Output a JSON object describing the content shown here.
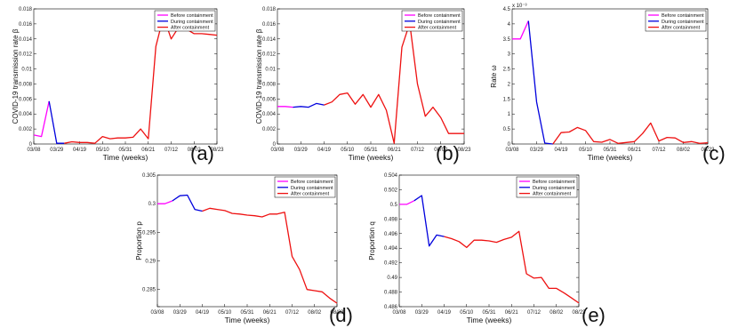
{
  "colors": {
    "before": "#ff00ff",
    "during": "#0000dd",
    "after": "#ee1111"
  },
  "chart_data": [
    {
      "type": "line",
      "panel_label": "(a)",
      "ylabel": "COVID-19 transmission rate β_H",
      "xlabel": "Time (weeks)",
      "x_tick_labels": [
        "03/08",
        "03/29",
        "04/19",
        "05/10",
        "05/31",
        "06/21",
        "07/12",
        "08/02",
        "08/23"
      ],
      "ylim": [
        0,
        0.018
      ],
      "yticks": [
        "0",
        "0.002",
        "0.004",
        "0.006",
        "0.008",
        "0.01",
        "0.012",
        "0.014",
        "0.016",
        "0.018"
      ],
      "y_multiplier": "",
      "legend": [
        "Before containment",
        "During containment",
        "After containment"
      ],
      "legend_position": "top-right",
      "series": [
        {
          "name": "Before containment",
          "x": [
            0,
            1,
            2
          ],
          "y": [
            0.0012,
            0.001,
            0.0057
          ]
        },
        {
          "name": "During containment",
          "x": [
            2,
            3,
            4
          ],
          "y": [
            0.0057,
            0.0001,
            0.0001
          ]
        },
        {
          "name": "After containment",
          "x": [
            4,
            5,
            6,
            7,
            8,
            9,
            10,
            11,
            12,
            13,
            14,
            15,
            16,
            17,
            18,
            19,
            20,
            21,
            22,
            23,
            24
          ],
          "y": [
            0.0001,
            0.0003,
            0.0002,
            0.0002,
            0.0001,
            0.001,
            0.0007,
            0.0008,
            0.0008,
            0.0009,
            0.002,
            0.0007,
            0.013,
            0.017,
            0.014,
            0.0156,
            0.0153,
            0.0147,
            0.0147,
            0.0146,
            0.0145
          ]
        }
      ]
    },
    {
      "type": "line",
      "panel_label": "(b)",
      "ylabel": "COVID-19 transmission rate β_V",
      "xlabel": "Time (weeks)",
      "x_tick_labels": [
        "03/08",
        "03/29",
        "04/19",
        "05/10",
        "05/31",
        "06/21",
        "07/12",
        "08/02",
        "08/23"
      ],
      "ylim": [
        0,
        0.018
      ],
      "yticks": [
        "0",
        "0.002",
        "0.004",
        "0.006",
        "0.008",
        "0.01",
        "0.012",
        "0.014",
        "0.016",
        "0.018"
      ],
      "y_multiplier": "",
      "legend": [
        "Before containment",
        "During containment",
        "After containment"
      ],
      "legend_position": "top-right",
      "series": [
        {
          "name": "Before containment",
          "x": [
            0,
            1,
            2
          ],
          "y": [
            0.005,
            0.005,
            0.0049
          ]
        },
        {
          "name": "During containment",
          "x": [
            2,
            3,
            4,
            5,
            6
          ],
          "y": [
            0.0049,
            0.005,
            0.0049,
            0.0054,
            0.0052
          ]
        },
        {
          "name": "After containment",
          "x": [
            6,
            7,
            8,
            9,
            10,
            11,
            12,
            13,
            14,
            15,
            16,
            17,
            18,
            19,
            20,
            21,
            22,
            23,
            24
          ],
          "y": [
            0.0052,
            0.0056,
            0.0066,
            0.0068,
            0.0053,
            0.0066,
            0.0049,
            0.0066,
            0.0045,
            0.0001,
            0.0129,
            0.0161,
            0.008,
            0.0037,
            0.0049,
            0.0035,
            0.0014,
            0.0014,
            0.0014
          ]
        }
      ]
    },
    {
      "type": "line",
      "panel_label": "(c)",
      "ylabel": "Rate ω",
      "xlabel": "Time (weeks)",
      "x_tick_labels": [
        "03/08",
        "03/29",
        "04/19",
        "05/10",
        "05/31",
        "06/21",
        "07/12",
        "08/02",
        "08/23"
      ],
      "ylim": [
        0,
        0.0045
      ],
      "yticks": [
        "0",
        "0.5",
        "1",
        "1.5",
        "2",
        "2.5",
        "3",
        "3.5",
        "4",
        "4.5"
      ],
      "y_multiplier": "x 10⁻³",
      "legend": [
        "Before containment",
        "During containment",
        "After containment"
      ],
      "legend_position": "top-right",
      "series": [
        {
          "name": "Before containment",
          "x": [
            0,
            1,
            2
          ],
          "y": [
            0.0035,
            0.0035,
            0.0041
          ]
        },
        {
          "name": "During containment",
          "x": [
            2,
            3,
            4,
            5
          ],
          "y": [
            0.0041,
            0.0014,
            3e-05,
            0.0
          ]
        },
        {
          "name": "After containment",
          "x": [
            5,
            6,
            7,
            8,
            9,
            10,
            11,
            12,
            13,
            14,
            15,
            16,
            17,
            18,
            19,
            20,
            21,
            22,
            23,
            24
          ],
          "y": [
            0.0,
            0.00038,
            0.0004,
            0.00055,
            0.00045,
            8e-05,
            6e-05,
            0.00015,
            2e-05,
            5e-05,
            8e-05,
            0.00035,
            0.0007,
            0.0001,
            0.00022,
            0.0002,
            5e-05,
            8e-05,
            2e-05,
            4e-05
          ]
        }
      ]
    },
    {
      "type": "line",
      "panel_label": "(d)",
      "ylabel": "Proportion p",
      "xlabel": "Time (weeks)",
      "x_tick_labels": [
        "03/08",
        "03/29",
        "04/19",
        "05/10",
        "05/31",
        "06/21",
        "07/12",
        "08/02",
        "08/23"
      ],
      "ylim": [
        0.282,
        0.305
      ],
      "yticks": [
        "",
        "0.285",
        "0.29",
        "0.295",
        "0.3",
        "0.305"
      ],
      "ytick_values": [
        0.282,
        0.285,
        0.29,
        0.295,
        0.3,
        0.305
      ],
      "y_multiplier": "",
      "legend": [
        "Before containment",
        "During containment",
        "After containment"
      ],
      "legend_position": "top-right",
      "series": [
        {
          "name": "Before containment",
          "x": [
            0,
            1,
            2
          ],
          "y": [
            0.3,
            0.3,
            0.3005
          ]
        },
        {
          "name": "During containment",
          "x": [
            2,
            3,
            4,
            5,
            6
          ],
          "y": [
            0.3005,
            0.3014,
            0.3015,
            0.299,
            0.2987
          ]
        },
        {
          "name": "After containment",
          "x": [
            6,
            7,
            8,
            9,
            10,
            11,
            12,
            13,
            14,
            15,
            16,
            17,
            18,
            19,
            20,
            21,
            22,
            23,
            24
          ],
          "y": [
            0.2987,
            0.2992,
            0.299,
            0.2988,
            0.2983,
            0.2982,
            0.298,
            0.2979,
            0.2977,
            0.2982,
            0.2982,
            0.2985,
            0.2908,
            0.2885,
            0.285,
            0.2848,
            0.2846,
            0.2835,
            0.2826
          ]
        }
      ]
    },
    {
      "type": "line",
      "panel_label": "(e)",
      "ylabel": "Proportion q",
      "xlabel": "Time (weeks)",
      "x_tick_labels": [
        "03/08",
        "03/29",
        "04/19",
        "05/10",
        "05/31",
        "06/21",
        "07/12",
        "08/02",
        "08/23"
      ],
      "ylim": [
        0.486,
        0.504
      ],
      "yticks": [
        "0.486",
        "0.488",
        "0.49",
        "0.492",
        "0.494",
        "0.496",
        "0.498",
        "0.5",
        "0.502",
        "0.504"
      ],
      "y_multiplier": "",
      "legend": [
        "Before containment",
        "During containment",
        "After containment"
      ],
      "legend_position": "top-right",
      "series": [
        {
          "name": "Before containment",
          "x": [
            0,
            1,
            2
          ],
          "y": [
            0.5,
            0.5,
            0.5005
          ]
        },
        {
          "name": "During containment",
          "x": [
            2,
            3,
            4,
            5,
            6
          ],
          "y": [
            0.5005,
            0.5012,
            0.4943,
            0.4958,
            0.4956
          ]
        },
        {
          "name": "After containment",
          "x": [
            6,
            7,
            8,
            9,
            10,
            11,
            12,
            13,
            14,
            15,
            16,
            17,
            18,
            19,
            20,
            21,
            22,
            23,
            24
          ],
          "y": [
            0.4956,
            0.4953,
            0.4949,
            0.4941,
            0.4951,
            0.4951,
            0.495,
            0.4948,
            0.4952,
            0.4955,
            0.4963,
            0.4905,
            0.4899,
            0.49,
            0.4885,
            0.4885,
            0.4879,
            0.4872,
            0.4865
          ]
        }
      ]
    }
  ]
}
